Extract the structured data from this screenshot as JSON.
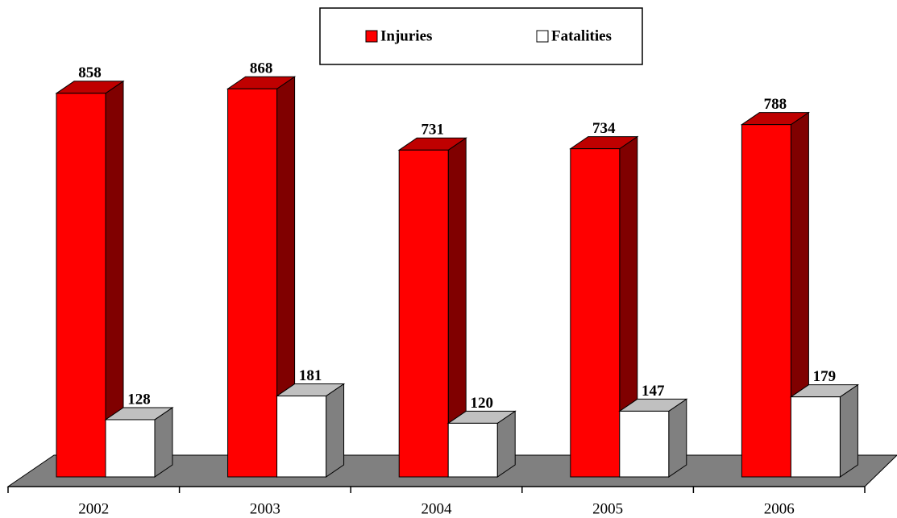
{
  "chart_data": {
    "type": "bar3d",
    "categories": [
      "2002",
      "2003",
      "2004",
      "2005",
      "2006"
    ],
    "series": [
      {
        "name": "Injuries",
        "color": "#ff0000",
        "values": [
          858,
          868,
          731,
          734,
          788
        ]
      },
      {
        "name": "Fatalities",
        "color": "#ffffff",
        "values": [
          128,
          181,
          120,
          147,
          179
        ]
      }
    ],
    "ylim": [
      0,
      1000
    ],
    "legend": "top"
  }
}
